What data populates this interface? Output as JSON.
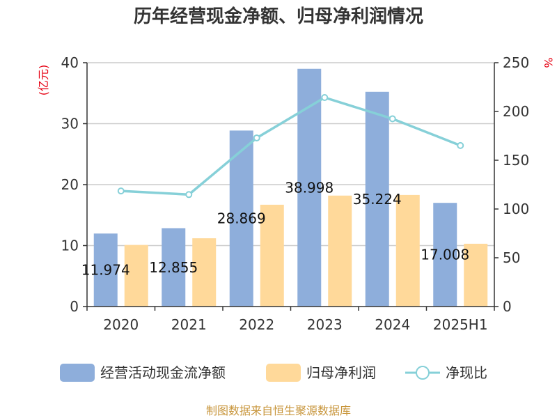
{
  "title": "历年经营现金净额、归母净利润情况",
  "source": "制图数据来自恒生聚源数据库",
  "chart_data": {
    "type": "bar",
    "categories": [
      "2020",
      "2021",
      "2022",
      "2023",
      "2024",
      "2025H1"
    ],
    "series": [
      {
        "name": "经营活动现金流净额",
        "type": "bar",
        "axis": "left",
        "color": "#8eaedb",
        "values": [
          11.974,
          12.855,
          28.869,
          38.998,
          35.224,
          17.008
        ],
        "labels": [
          "11.974",
          "12.855",
          "28.869",
          "38.998",
          "35.224",
          "17.008"
        ]
      },
      {
        "name": "归母净利润",
        "type": "bar",
        "axis": "left",
        "color": "#ffd99a",
        "values": [
          10.1,
          11.2,
          16.7,
          18.2,
          18.3,
          10.3
        ]
      },
      {
        "name": "净现比",
        "type": "line",
        "axis": "right",
        "color": "#86d0d8",
        "values": [
          118.5,
          114.8,
          172.9,
          214.3,
          192.5,
          165.1
        ]
      }
    ],
    "y_left": {
      "label": "(亿元)",
      "min": 0,
      "max": 40,
      "ticks": [
        0,
        10,
        20,
        30,
        40
      ]
    },
    "y_right": {
      "label": "%",
      "min": 0,
      "max": 250,
      "ticks": [
        0,
        50,
        100,
        150,
        200,
        250
      ]
    },
    "grid": true,
    "legend": "bottom"
  }
}
